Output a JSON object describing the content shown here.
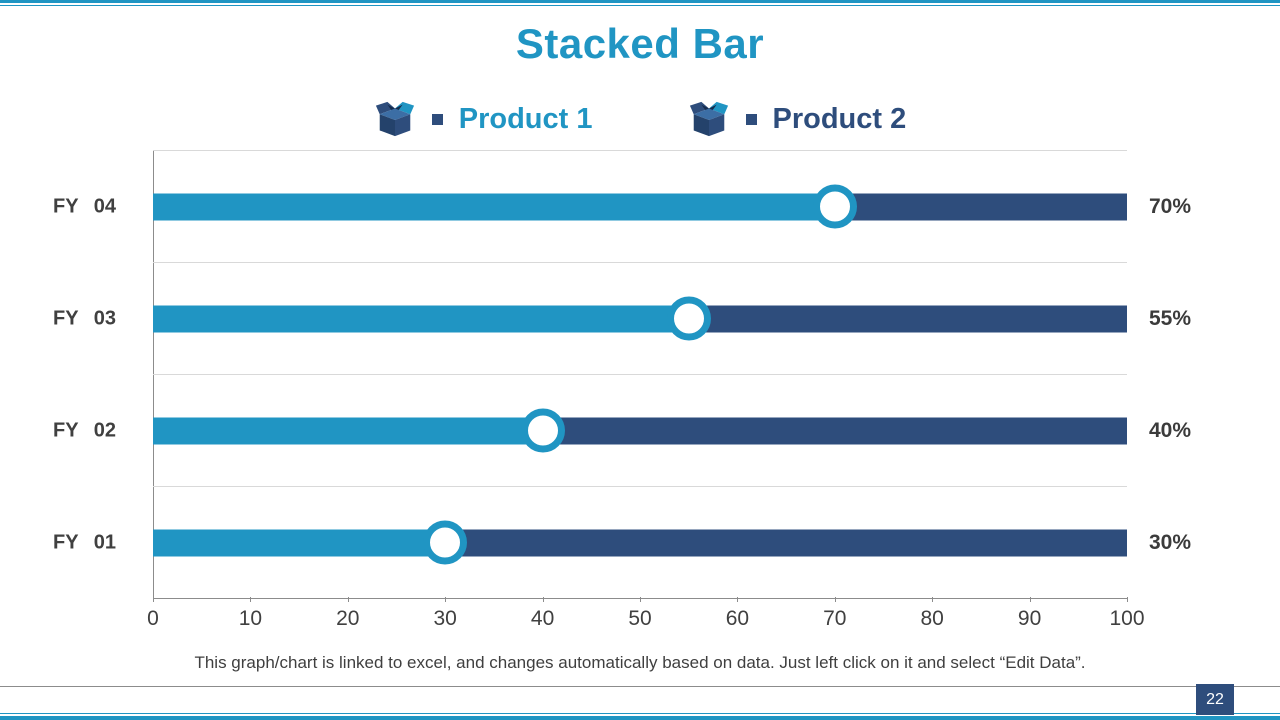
{
  "slide": {
    "title": "Stacked Bar",
    "footer": "This graph/chart is linked to excel, and changes automatically based on data. Just left click on it and select “Edit Data”.",
    "page_number": "22"
  },
  "colors": {
    "accent_teal": "#2095C3",
    "accent_navy": "#2E4D7C",
    "text_dark": "#404040",
    "gridline": "#D9D9D9",
    "axis_line": "#8C8C8C"
  },
  "legend": {
    "items": [
      {
        "label": "Product 1",
        "icon": "box-icon",
        "color": "#2095C3"
      },
      {
        "label": "Product 2",
        "icon": "box-icon",
        "color": "#2E4D7C"
      }
    ]
  },
  "chart_data": {
    "type": "bar",
    "orientation": "horizontal",
    "stacked": true,
    "title": "Stacked Bar",
    "categories": [
      "FY 04",
      "FY 03",
      "FY 02",
      "FY 01"
    ],
    "series": [
      {
        "name": "Product 1",
        "color": "#2095C3",
        "values": [
          70,
          55,
          40,
          30
        ]
      },
      {
        "name": "Product 2",
        "color": "#2E4D7C",
        "values": [
          30,
          45,
          60,
          70
        ]
      }
    ],
    "data_labels": [
      "70%",
      "55%",
      "40%",
      "30%"
    ],
    "x_ticks": [
      0,
      10,
      20,
      30,
      40,
      50,
      60,
      70,
      80,
      90,
      100
    ],
    "xlim": [
      0,
      100
    ],
    "grid": true,
    "legend_position": "top"
  }
}
